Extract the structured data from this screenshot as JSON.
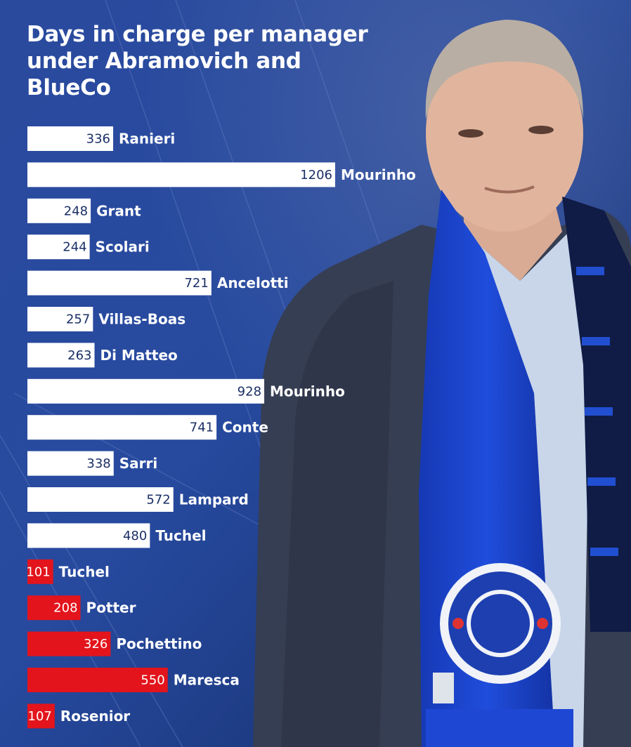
{
  "chart_data": {
    "type": "bar",
    "orientation": "horizontal",
    "title": "Days in charge per manager under Abramovich and BlueCo",
    "categories": [
      "Ranieri",
      "Mourinho",
      "Grant",
      "Scolari",
      "Ancelotti",
      "Villas-Boas",
      "Di Matteo",
      "Mourinho",
      "Conte",
      "Sarri",
      "Lampard",
      "Tuchel",
      "Tuchel",
      "Potter",
      "Pochettino",
      "Maresca",
      "Rosenior"
    ],
    "values": [
      336,
      1206,
      248,
      244,
      721,
      257,
      263,
      928,
      741,
      338,
      572,
      480,
      101,
      208,
      326,
      550,
      107
    ],
    "era": [
      "Abramovich",
      "Abramovich",
      "Abramovich",
      "Abramovich",
      "Abramovich",
      "Abramovich",
      "Abramovich",
      "Abramovich",
      "Abramovich",
      "Abramovich",
      "Abramovich",
      "Abramovich",
      "BlueCo",
      "BlueCo",
      "BlueCo",
      "BlueCo",
      "BlueCo"
    ],
    "colors": {
      "Abramovich": "#ffffff",
      "BlueCo": "#e3141c",
      "value_on_white": "#1b2f66",
      "value_on_red": "#ffffff",
      "label": "#ffffff"
    },
    "xlim": [
      0,
      1206
    ],
    "grid": false,
    "legend": "none"
  },
  "colors": {
    "background_dark": "#17306e",
    "background_mid": "#2a4fa6",
    "scarf_blue": "#1a44c8",
    "coat": "#3a4256"
  }
}
